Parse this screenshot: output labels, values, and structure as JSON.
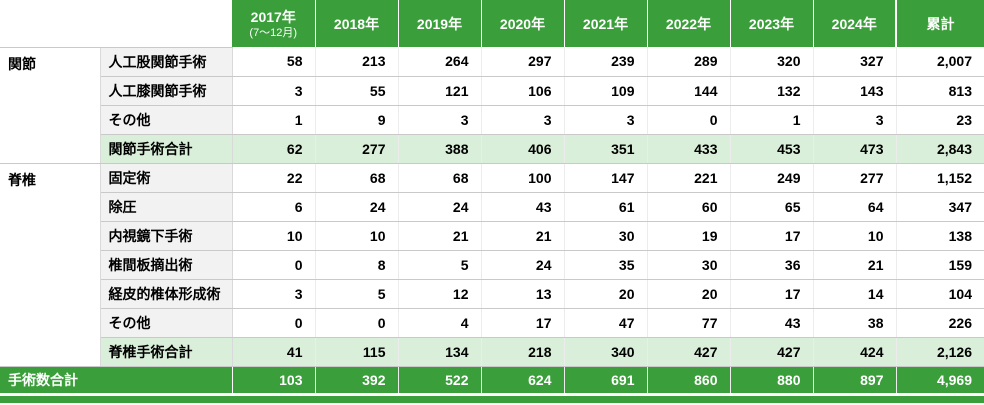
{
  "chart_data": {
    "type": "table",
    "col_headers": [
      {
        "label": "2017年",
        "note": "(7～12月)"
      },
      {
        "label": "2018年",
        "note": ""
      },
      {
        "label": "2019年",
        "note": ""
      },
      {
        "label": "2020年",
        "note": ""
      },
      {
        "label": "2021年",
        "note": ""
      },
      {
        "label": "2022年",
        "note": ""
      },
      {
        "label": "2023年",
        "note": ""
      },
      {
        "label": "2024年",
        "note": ""
      },
      {
        "label": "累計",
        "note": ""
      }
    ],
    "groups": [
      {
        "name": "関節",
        "rows": [
          {
            "label": "人工股関節手術",
            "is_subtotal": false,
            "values": [
              58,
              213,
              264,
              297,
              239,
              289,
              320,
              327,
              2007
            ]
          },
          {
            "label": "人工膝関節手術",
            "is_subtotal": false,
            "values": [
              3,
              55,
              121,
              106,
              109,
              144,
              132,
              143,
              813
            ]
          },
          {
            "label": "その他",
            "is_subtotal": false,
            "values": [
              1,
              9,
              3,
              3,
              3,
              0,
              1,
              3,
              23
            ]
          },
          {
            "label": "関節手術合計",
            "is_subtotal": true,
            "values": [
              62,
              277,
              388,
              406,
              351,
              433,
              453,
              473,
              2843
            ]
          }
        ]
      },
      {
        "name": "脊椎",
        "rows": [
          {
            "label": "固定術",
            "is_subtotal": false,
            "values": [
              22,
              68,
              68,
              100,
              147,
              221,
              249,
              277,
              1152
            ]
          },
          {
            "label": "除圧",
            "is_subtotal": false,
            "values": [
              6,
              24,
              24,
              43,
              61,
              60,
              65,
              64,
              347
            ]
          },
          {
            "label": "内視鏡下手術",
            "is_subtotal": false,
            "values": [
              10,
              10,
              21,
              21,
              30,
              19,
              17,
              10,
              138
            ]
          },
          {
            "label": "椎間板摘出術",
            "is_subtotal": false,
            "values": [
              0,
              8,
              5,
              24,
              35,
              30,
              36,
              21,
              159
            ]
          },
          {
            "label": "経皮的椎体形成術",
            "is_subtotal": false,
            "values": [
              3,
              5,
              12,
              13,
              20,
              20,
              17,
              14,
              104
            ]
          },
          {
            "label": "その他",
            "is_subtotal": false,
            "values": [
              0,
              0,
              4,
              17,
              47,
              77,
              43,
              38,
              226
            ]
          },
          {
            "label": "脊椎手術合計",
            "is_subtotal": true,
            "values": [
              41,
              115,
              134,
              218,
              340,
              427,
              427,
              424,
              2126
            ]
          }
        ]
      }
    ],
    "total_row": {
      "label": "手術数合計",
      "values": [
        103,
        392,
        522,
        624,
        691,
        860,
        880,
        897,
        4969
      ]
    },
    "colors": {
      "header_green": "#3a9e3a",
      "subtotal_green": "#d9efd9",
      "label_gray": "#f2f2f2",
      "border_gray": "#c9c9c9"
    }
  }
}
